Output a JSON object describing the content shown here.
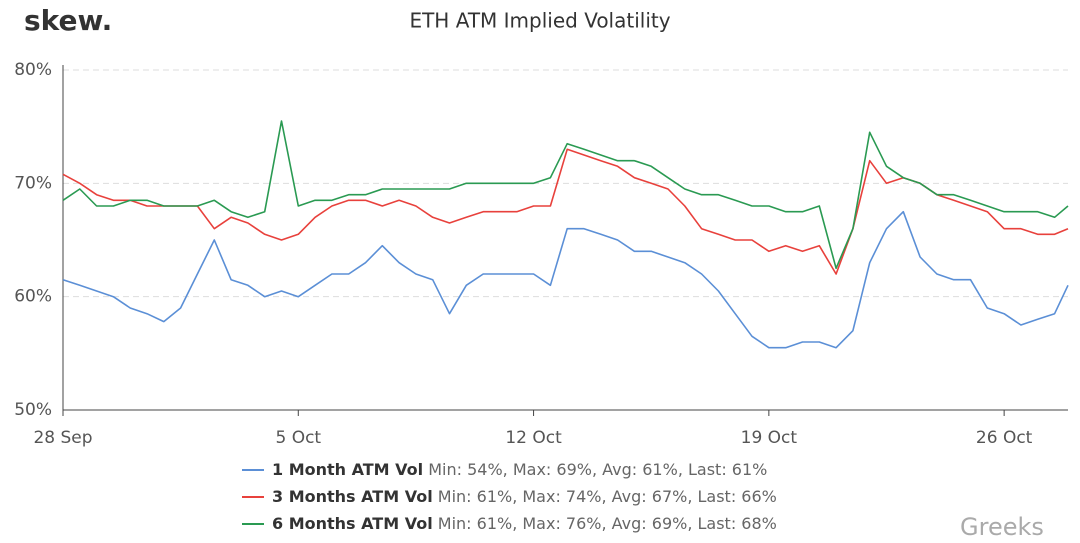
{
  "logo": "skew.",
  "watermark": "Greeks",
  "chart_data": {
    "type": "line",
    "title": "ETH ATM Implied Volatility",
    "x": [
      0,
      0.5,
      1,
      1.5,
      2,
      2.5,
      3,
      3.5,
      4,
      4.5,
      5,
      5.5,
      6,
      6.5,
      7,
      7.5,
      8,
      8.5,
      9,
      9.5,
      10,
      10.5,
      11,
      11.5,
      12,
      12.5,
      13,
      13.5,
      14,
      14.5,
      15,
      15.5,
      16,
      16.5,
      17,
      17.5,
      18,
      18.5,
      19,
      19.5,
      20,
      20.5,
      21,
      21.5,
      22,
      22.5,
      23,
      23.5,
      24,
      24.5,
      25,
      25.5,
      26,
      26.5,
      27,
      27.5,
      28,
      28.5,
      29,
      29.5,
      29.9
    ],
    "xlim": [
      0,
      29.9
    ],
    "xticks": [
      {
        "value": 0,
        "label": "28 Sep"
      },
      {
        "value": 7,
        "label": "5 Oct"
      },
      {
        "value": 14,
        "label": "12 Oct"
      },
      {
        "value": 21,
        "label": "19 Oct"
      },
      {
        "value": 28,
        "label": "26 Oct"
      }
    ],
    "ylim": [
      50,
      80
    ],
    "yticks": [
      {
        "value": 50,
        "label": "50%"
      },
      {
        "value": 60,
        "label": "60%"
      },
      {
        "value": 70,
        "label": "70%"
      },
      {
        "value": 80,
        "label": "80%"
      }
    ],
    "grid": true,
    "series": [
      {
        "name": "1 Month ATM Vol",
        "stats": "Min: 54%, Max: 69%, Avg: 61%, Last: 61%",
        "color": "#5b8fd6",
        "values": [
          61.5,
          61,
          60.5,
          60,
          59,
          58.5,
          57.8,
          59,
          62,
          65,
          61.5,
          61,
          60,
          60.5,
          60,
          61,
          62,
          62,
          63,
          64.5,
          63,
          62,
          61.5,
          58.5,
          61,
          62,
          62,
          62,
          62,
          61,
          66,
          66,
          65.5,
          65,
          64,
          64,
          63.5,
          63,
          62,
          60.5,
          58.5,
          56.5,
          55.5,
          55.5,
          56,
          56,
          55.5,
          57,
          63,
          66,
          67.5,
          63.5,
          62,
          61.5,
          61.5,
          59,
          58.5,
          57.5,
          58,
          58.5,
          61
        ]
      },
      {
        "name": "3 Months ATM Vol",
        "stats": "Min: 61%, Max: 74%, Avg: 67%, Last: 66%",
        "color": "#e8413c",
        "values": [
          70.8,
          70,
          69,
          68.5,
          68.5,
          68,
          68,
          68,
          68,
          66,
          67,
          66.5,
          65.5,
          65,
          65.5,
          67,
          68,
          68.5,
          68.5,
          68,
          68.5,
          68,
          67,
          66.5,
          67,
          67.5,
          67.5,
          67.5,
          68,
          68,
          73,
          72.5,
          72,
          71.5,
          70.5,
          70,
          69.5,
          68,
          66,
          65.5,
          65,
          65,
          64,
          64.5,
          64,
          64.5,
          62,
          66,
          72,
          70,
          70.5,
          70,
          69,
          68.5,
          68,
          67.5,
          66,
          66,
          65.5,
          65.5,
          66
        ]
      },
      {
        "name": "6 Months ATM Vol",
        "stats": "Min: 61%, Max: 76%, Avg: 69%, Last: 68%",
        "color": "#2a9a52",
        "values": [
          68.5,
          69.5,
          68,
          68,
          68.5,
          68.5,
          68,
          68,
          68,
          68.5,
          67.5,
          67,
          67.5,
          75.5,
          68,
          68.5,
          68.5,
          69,
          69,
          69.5,
          69.5,
          69.5,
          69.5,
          69.5,
          70,
          70,
          70,
          70,
          70,
          70.5,
          73.5,
          73,
          72.5,
          72,
          72,
          71.5,
          70.5,
          69.5,
          69,
          69,
          68.5,
          68,
          68,
          67.5,
          67.5,
          68,
          62.5,
          66,
          74.5,
          71.5,
          70.5,
          70,
          69,
          69,
          68.5,
          68,
          67.5,
          67.5,
          67.5,
          67,
          68
        ]
      }
    ]
  }
}
